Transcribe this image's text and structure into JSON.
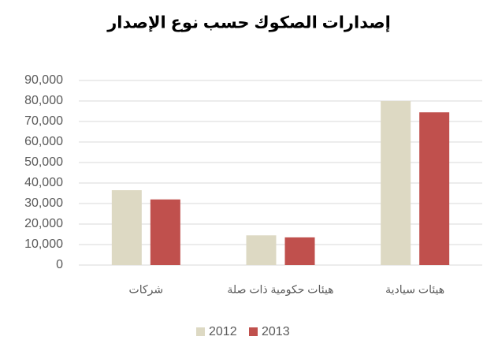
{
  "chart_data": {
    "type": "bar",
    "title": "إصدارات الصكوك حسب نوع الإصدار",
    "categories": [
      "شركات",
      "هيئات حكومية ذات صلة",
      "هيئات سيادية"
    ],
    "series": [
      {
        "name": "2012",
        "color": "#ddd9c3",
        "values": [
          36500,
          14500,
          80000
        ]
      },
      {
        "name": "2013",
        "color": "#c0504d",
        "values": [
          32000,
          13500,
          74500
        ]
      }
    ],
    "ylim": [
      0,
      90000
    ],
    "yticks": [
      0,
      {
        "value": 10000,
        "label": "10,000"
      },
      {
        "value": 20000,
        "label": "20,000"
      },
      {
        "value": 30000,
        "label": "30,000"
      },
      {
        "value": 40000,
        "label": "40,000"
      },
      {
        "value": 50000,
        "label": "50,000"
      },
      {
        "value": 60000,
        "label": "60,000"
      },
      {
        "value": 70000,
        "label": "70,000"
      },
      {
        "value": 80000,
        "label": "80,000"
      },
      {
        "value": 90000,
        "label": "90,000"
      }
    ],
    "grid": true,
    "legend": "bottom"
  }
}
